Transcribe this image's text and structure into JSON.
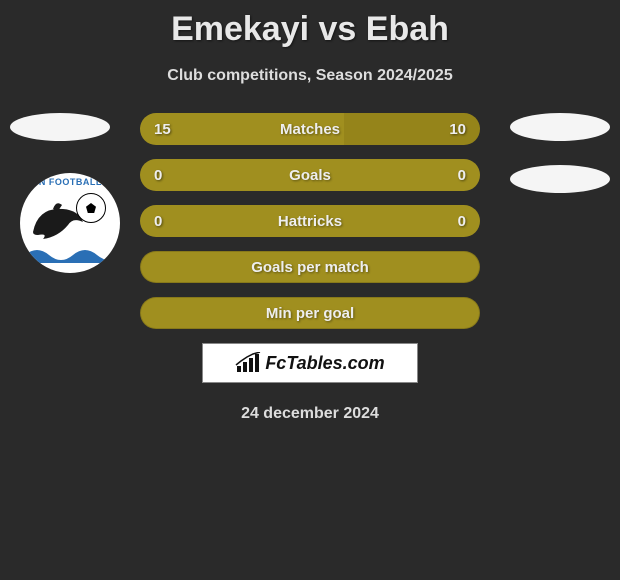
{
  "colors": {
    "page_bg": "#2a2a2a",
    "bar_olive": "#a08f1f",
    "bar_olive_alt": "#9b8a1a",
    "white": "#f5f5f5",
    "text": "#eeeeee"
  },
  "title": "Emekayi vs Ebah",
  "subtitle": "Club competitions, Season 2024/2025",
  "club_logo": {
    "arc_text": "PHIN FOOTBALL CL"
  },
  "rows": [
    {
      "type": "split",
      "label": "Matches",
      "left_value": "15",
      "right_value": "10",
      "left_pct": 60,
      "right_pct": 40,
      "left_color": "#a08f1f",
      "right_color": "#95841a"
    },
    {
      "type": "split",
      "label": "Goals",
      "left_value": "0",
      "right_value": "0",
      "left_pct": 50,
      "right_pct": 50,
      "left_color": "#a08f1f",
      "right_color": "#a08f1f"
    },
    {
      "type": "split",
      "label": "Hattricks",
      "left_value": "0",
      "right_value": "0",
      "left_pct": 50,
      "right_pct": 50,
      "left_color": "#a08f1f",
      "right_color": "#a08f1f"
    },
    {
      "type": "single",
      "label": "Goals per match",
      "bg_color": "#a08f1f"
    },
    {
      "type": "single",
      "label": "Min per goal",
      "bg_color": "#a08f1f"
    }
  ],
  "brand": {
    "text": "FcTables.com"
  },
  "date": "24 december 2024"
}
